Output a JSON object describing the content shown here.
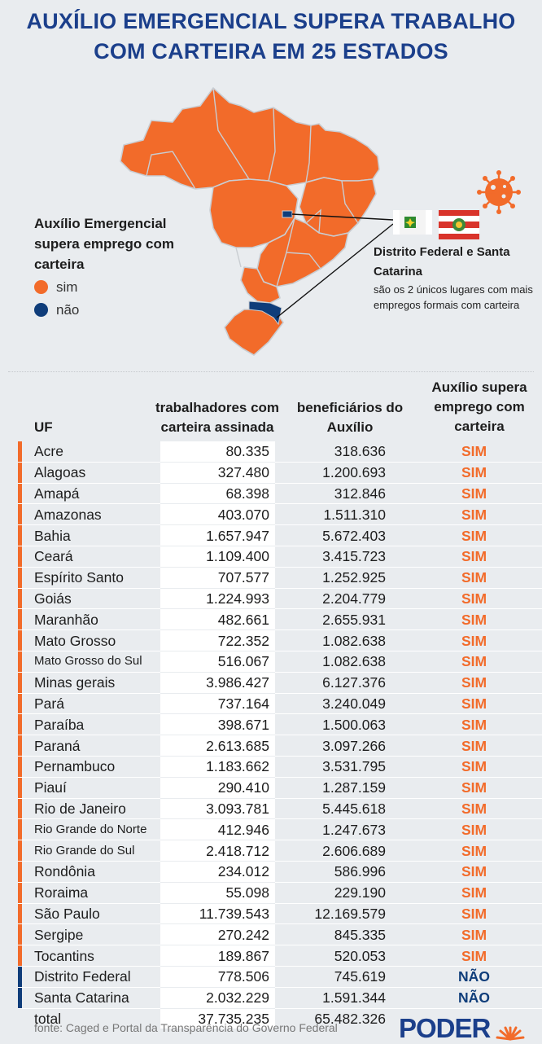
{
  "title": {
    "line1": "AUXÍLIO EMERGENCIAL SUPERA TRABALHO",
    "line2": "COM CARTEIRA EM 25 ESTADOS"
  },
  "legend": {
    "title": "Auxílio Emergencial supera emprego com carteira",
    "items": [
      {
        "label": "sim",
        "color": "#f26b2a"
      },
      {
        "label": "não",
        "color": "#0f3d7a"
      }
    ]
  },
  "callout": {
    "title": "Distrito Federal e Santa Catarina",
    "text": "são os 2 únicos lugares com mais empregos formais com carteira"
  },
  "colors": {
    "sim": "#f26b2a",
    "nao": "#0f3d7a",
    "title": "#1b3f8b"
  },
  "chart_data": {
    "type": "table",
    "title": "AUXÍLIO EMERGENCIAL SUPERA TRABALHO COM CARTEIRA EM 25 ESTADOS",
    "columns": [
      "UF",
      "trabalhadores com carteira assinada",
      "beneficiários do Auxílio",
      "Auxílio supera emprego com carteira"
    ],
    "rows": [
      {
        "uf": "Acre",
        "trabalhadores": "80.335",
        "beneficiarios": "318.636",
        "supera": "SIM"
      },
      {
        "uf": "Alagoas",
        "trabalhadores": "327.480",
        "beneficiarios": "1.200.693",
        "supera": "SIM"
      },
      {
        "uf": "Amapá",
        "trabalhadores": "68.398",
        "beneficiarios": "312.846",
        "supera": "SIM"
      },
      {
        "uf": "Amazonas",
        "trabalhadores": "403.070",
        "beneficiarios": "1.511.310",
        "supera": "SIM"
      },
      {
        "uf": "Bahia",
        "trabalhadores": "1.657.947",
        "beneficiarios": "5.672.403",
        "supera": "SIM"
      },
      {
        "uf": "Ceará",
        "trabalhadores": "1.109.400",
        "beneficiarios": "3.415.723",
        "supera": "SIM"
      },
      {
        "uf": "Espírito Santo",
        "trabalhadores": "707.577",
        "beneficiarios": "1.252.925",
        "supera": "SIM"
      },
      {
        "uf": "Goiás",
        "trabalhadores": "1.224.993",
        "beneficiarios": "2.204.779",
        "supera": "SIM"
      },
      {
        "uf": "Maranhão",
        "trabalhadores": "482.661",
        "beneficiarios": "2.655.931",
        "supera": "SIM"
      },
      {
        "uf": "Mato Grosso",
        "trabalhadores": "722.352",
        "beneficiarios": "1.082.638",
        "supera": "SIM"
      },
      {
        "uf": "Mato Grosso do Sul",
        "trabalhadores": "516.067",
        "beneficiarios": "1.082.638",
        "supera": "SIM"
      },
      {
        "uf": "Minas gerais",
        "trabalhadores": "3.986.427",
        "beneficiarios": "6.127.376",
        "supera": "SIM"
      },
      {
        "uf": "Pará",
        "trabalhadores": "737.164",
        "beneficiarios": "3.240.049",
        "supera": "SIM"
      },
      {
        "uf": "Paraíba",
        "trabalhadores": "398.671",
        "beneficiarios": "1.500.063",
        "supera": "SIM"
      },
      {
        "uf": "Paraná",
        "trabalhadores": "2.613.685",
        "beneficiarios": "3.097.266",
        "supera": "SIM"
      },
      {
        "uf": "Pernambuco",
        "trabalhadores": "1.183.662",
        "beneficiarios": "3.531.795",
        "supera": "SIM"
      },
      {
        "uf": "Piauí",
        "trabalhadores": "290.410",
        "beneficiarios": "1.287.159",
        "supera": "SIM"
      },
      {
        "uf": "Rio de Janeiro",
        "trabalhadores": "3.093.781",
        "beneficiarios": "5.445.618",
        "supera": "SIM"
      },
      {
        "uf": "Rio Grande do Norte",
        "trabalhadores": "412.946",
        "beneficiarios": "1.247.673",
        "supera": "SIM"
      },
      {
        "uf": "Rio Grande do Sul",
        "trabalhadores": "2.418.712",
        "beneficiarios": "2.606.689",
        "supera": "SIM"
      },
      {
        "uf": "Rondônia",
        "trabalhadores": "234.012",
        "beneficiarios": "586.996",
        "supera": "SIM"
      },
      {
        "uf": "Roraima",
        "trabalhadores": "55.098",
        "beneficiarios": "229.190",
        "supera": "SIM"
      },
      {
        "uf": "São Paulo",
        "trabalhadores": "11.739.543",
        "beneficiarios": "12.169.579",
        "supera": "SIM"
      },
      {
        "uf": "Sergipe",
        "trabalhadores": "270.242",
        "beneficiarios": "845.335",
        "supera": "SIM"
      },
      {
        "uf": "Tocantins",
        "trabalhadores": "189.867",
        "beneficiarios": "520.053",
        "supera": "SIM"
      },
      {
        "uf": "Distrito Federal",
        "trabalhadores": "778.506",
        "beneficiarios": "745.619",
        "supera": "NÃO"
      },
      {
        "uf": "Santa Catarina",
        "trabalhadores": "2.032.229",
        "beneficiarios": "1.591.344",
        "supera": "NÃO"
      }
    ],
    "total": {
      "label": "total",
      "trabalhadores": "37.735.235",
      "beneficiarios": "65.482.326"
    }
  },
  "footer": {
    "source": "fonte: Caged e Portal da Transparência do Governo Federal",
    "logo": "PODER"
  }
}
